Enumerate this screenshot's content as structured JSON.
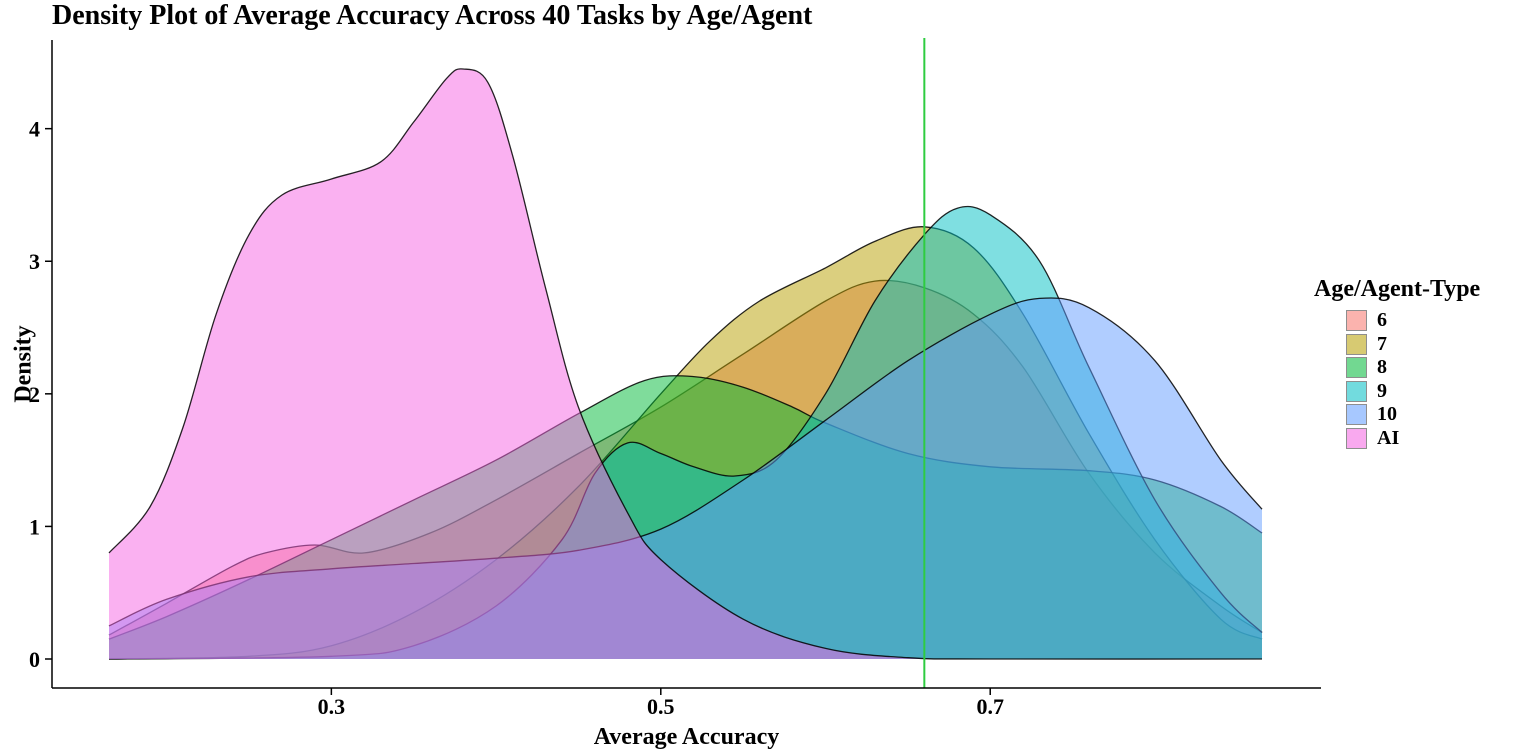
{
  "chart_data": {
    "type": "area",
    "title": "Density Plot of Average Accuracy Across 40 Tasks by Age/Agent",
    "xlabel": "Average Accuracy",
    "ylabel": "Density",
    "xlim": [
      0.165,
      0.865
    ],
    "ylim": [
      0,
      4.45
    ],
    "xticks": [
      0.3,
      0.5,
      0.7
    ],
    "xtick_labels": [
      "0.3",
      "0.5",
      "0.7"
    ],
    "yticks": [
      0,
      1,
      2,
      3,
      4
    ],
    "ytick_labels": [
      "0",
      "1",
      "2",
      "3",
      "4"
    ],
    "vline": {
      "x": 0.66,
      "color": "#2ecc40"
    },
    "grid": false,
    "legend": {
      "title": "Age/Agent-Type",
      "position": "right"
    },
    "series": [
      {
        "name": "6",
        "color": "#F8766D",
        "points": [
          [
            0.165,
            0.18
          ],
          [
            0.2,
            0.42
          ],
          [
            0.24,
            0.7
          ],
          [
            0.26,
            0.8
          ],
          [
            0.29,
            0.86
          ],
          [
            0.32,
            0.8
          ],
          [
            0.36,
            0.95
          ],
          [
            0.4,
            1.2
          ],
          [
            0.45,
            1.55
          ],
          [
            0.5,
            1.9
          ],
          [
            0.55,
            2.3
          ],
          [
            0.6,
            2.7
          ],
          [
            0.63,
            2.85
          ],
          [
            0.66,
            2.8
          ],
          [
            0.69,
            2.6
          ],
          [
            0.72,
            2.2
          ],
          [
            0.76,
            1.4
          ],
          [
            0.8,
            0.8
          ],
          [
            0.84,
            0.4
          ],
          [
            0.865,
            0.2
          ]
        ]
      },
      {
        "name": "7",
        "color": "#B79F00",
        "points": [
          [
            0.165,
            0.0
          ],
          [
            0.25,
            0.02
          ],
          [
            0.3,
            0.1
          ],
          [
            0.35,
            0.35
          ],
          [
            0.4,
            0.75
          ],
          [
            0.45,
            1.3
          ],
          [
            0.5,
            2.0
          ],
          [
            0.53,
            2.4
          ],
          [
            0.56,
            2.7
          ],
          [
            0.6,
            2.95
          ],
          [
            0.63,
            3.15
          ],
          [
            0.66,
            3.26
          ],
          [
            0.69,
            3.1
          ],
          [
            0.72,
            2.6
          ],
          [
            0.76,
            1.7
          ],
          [
            0.8,
            0.9
          ],
          [
            0.84,
            0.3
          ],
          [
            0.865,
            0.15
          ]
        ]
      },
      {
        "name": "8",
        "color": "#00BA38",
        "points": [
          [
            0.165,
            0.15
          ],
          [
            0.2,
            0.32
          ],
          [
            0.25,
            0.6
          ],
          [
            0.3,
            0.9
          ],
          [
            0.35,
            1.2
          ],
          [
            0.4,
            1.5
          ],
          [
            0.45,
            1.85
          ],
          [
            0.49,
            2.1
          ],
          [
            0.52,
            2.13
          ],
          [
            0.55,
            2.05
          ],
          [
            0.58,
            1.9
          ],
          [
            0.6,
            1.78
          ],
          [
            0.65,
            1.55
          ],
          [
            0.7,
            1.45
          ],
          [
            0.76,
            1.42
          ],
          [
            0.8,
            1.35
          ],
          [
            0.84,
            1.15
          ],
          [
            0.865,
            0.95
          ]
        ]
      },
      {
        "name": "9",
        "color": "#00BFC4",
        "points": [
          [
            0.165,
            0.0
          ],
          [
            0.3,
            0.02
          ],
          [
            0.35,
            0.1
          ],
          [
            0.4,
            0.4
          ],
          [
            0.44,
            0.9
          ],
          [
            0.46,
            1.4
          ],
          [
            0.48,
            1.63
          ],
          [
            0.5,
            1.55
          ],
          [
            0.52,
            1.45
          ],
          [
            0.545,
            1.38
          ],
          [
            0.57,
            1.5
          ],
          [
            0.6,
            2.0
          ],
          [
            0.63,
            2.7
          ],
          [
            0.66,
            3.2
          ],
          [
            0.68,
            3.4
          ],
          [
            0.7,
            3.35
          ],
          [
            0.73,
            3.0
          ],
          [
            0.76,
            2.2
          ],
          [
            0.8,
            1.2
          ],
          [
            0.84,
            0.5
          ],
          [
            0.865,
            0.2
          ]
        ]
      },
      {
        "name": "10",
        "color": "#619CFF",
        "points": [
          [
            0.165,
            0.25
          ],
          [
            0.2,
            0.45
          ],
          [
            0.25,
            0.62
          ],
          [
            0.3,
            0.68
          ],
          [
            0.35,
            0.72
          ],
          [
            0.4,
            0.76
          ],
          [
            0.45,
            0.82
          ],
          [
            0.5,
            0.98
          ],
          [
            0.55,
            1.35
          ],
          [
            0.6,
            1.8
          ],
          [
            0.65,
            2.25
          ],
          [
            0.7,
            2.6
          ],
          [
            0.73,
            2.72
          ],
          [
            0.76,
            2.65
          ],
          [
            0.8,
            2.25
          ],
          [
            0.84,
            1.5
          ],
          [
            0.865,
            1.13
          ]
        ]
      },
      {
        "name": "AI",
        "color": "#F564E3",
        "points": [
          [
            0.165,
            0.8
          ],
          [
            0.19,
            1.15
          ],
          [
            0.21,
            1.75
          ],
          [
            0.23,
            2.6
          ],
          [
            0.25,
            3.2
          ],
          [
            0.27,
            3.5
          ],
          [
            0.3,
            3.62
          ],
          [
            0.33,
            3.75
          ],
          [
            0.35,
            4.05
          ],
          [
            0.37,
            4.38
          ],
          [
            0.38,
            4.45
          ],
          [
            0.395,
            4.35
          ],
          [
            0.41,
            3.8
          ],
          [
            0.43,
            2.8
          ],
          [
            0.45,
            1.9
          ],
          [
            0.48,
            1.1
          ],
          [
            0.5,
            0.75
          ],
          [
            0.55,
            0.3
          ],
          [
            0.6,
            0.08
          ],
          [
            0.65,
            0.01
          ],
          [
            0.7,
            0.0
          ],
          [
            0.865,
            0.0
          ]
        ]
      }
    ]
  }
}
